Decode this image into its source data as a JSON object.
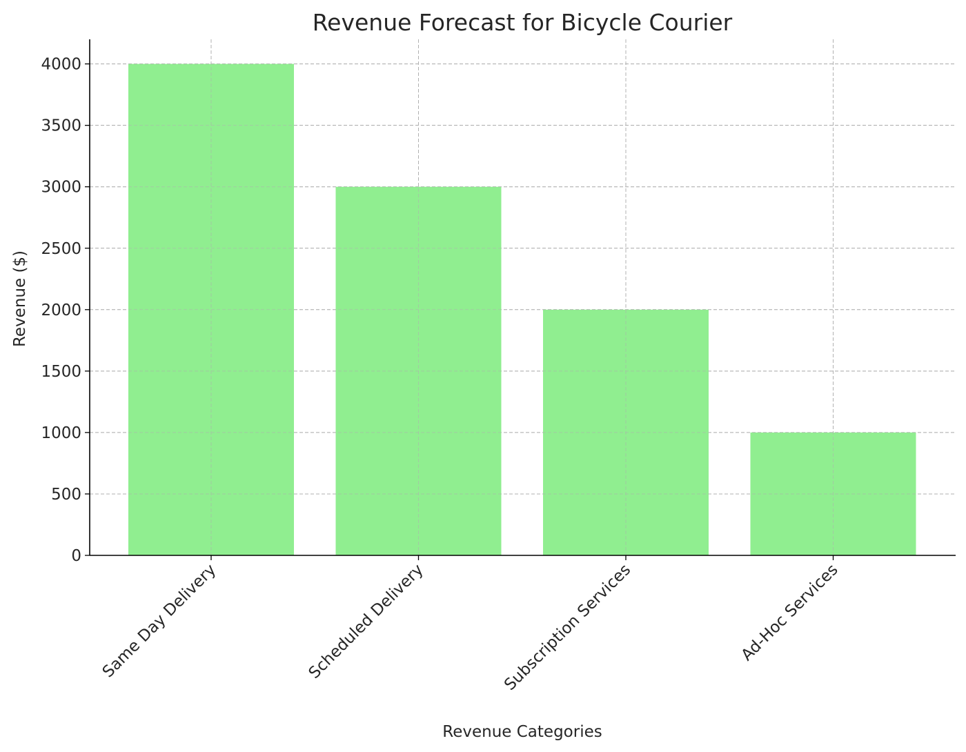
{
  "chart_data": {
    "type": "bar",
    "title": "Revenue Forecast for Bicycle Courier",
    "xlabel": "Revenue Categories",
    "ylabel": "Revenue ($)",
    "categories": [
      "Same Day Delivery",
      "Scheduled Delivery",
      "Subscription Services",
      "Ad-Hoc Services"
    ],
    "values": [
      4000,
      3000,
      2000,
      1000
    ],
    "ylim": [
      0,
      4200
    ],
    "yticks": [
      0,
      500,
      1000,
      1500,
      2000,
      2500,
      3000,
      3500,
      4000
    ],
    "bar_color": "#90ee90",
    "grid": true
  }
}
